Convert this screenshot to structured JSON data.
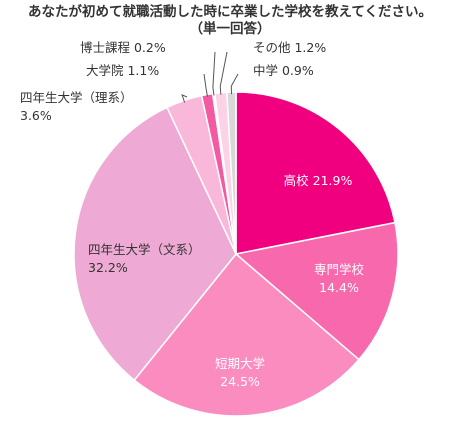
{
  "chart_data": {
    "type": "pie",
    "title": "あなたが初めて就職活動した時に卒業した学校を教えてください。",
    "subtitle": "（単一回答）",
    "unit": "%",
    "slices": [
      {
        "label": "高校",
        "value": 21.9,
        "color": "#f0007f",
        "text_color": "#ffffff"
      },
      {
        "label": "専門学校",
        "value": 14.4,
        "color": "#f868ad",
        "text_color": "#ffffff"
      },
      {
        "label": "短期大学",
        "value": 24.5,
        "color": "#fa8cc0",
        "text_color": "#ffffff"
      },
      {
        "label": "四年生大学（文系）",
        "value": 32.2,
        "color": "#eeaad4",
        "text_color": "#333333"
      },
      {
        "label": "四年生大学（理系）",
        "value": 3.6,
        "color": "#f9b8da",
        "text_color": "#333333"
      },
      {
        "label": "大学院",
        "value": 1.1,
        "color": "#f25aa2",
        "text_color": "#333333"
      },
      {
        "label": "博士課程",
        "value": 0.2,
        "color": "#ffffff",
        "text_color": "#333333"
      },
      {
        "label": "その他",
        "value": 1.2,
        "color": "#fcd2e7",
        "text_color": "#333333"
      },
      {
        "label": "中学",
        "value": 0.9,
        "color": "#d8d8d8",
        "text_color": "#333333"
      }
    ]
  }
}
